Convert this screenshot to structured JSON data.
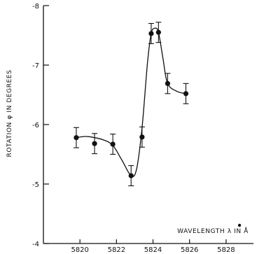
{
  "chart_data": {
    "type": "scatter",
    "xlabel": "WAVELENGTH λ IN Å",
    "ylabel": "ROTATION φ IN DEGREES",
    "xlim": [
      5818,
      5829.5
    ],
    "ylim": [
      -4,
      -8
    ],
    "y_inverted": true,
    "x_ticks": [
      5820,
      5822,
      5824,
      5826,
      5828
    ],
    "x_tick_labels": [
      "5820",
      "5822",
      "5824",
      "5826",
      "5828"
    ],
    "y_ticks": [
      -4,
      -5,
      -6,
      -7,
      -8
    ],
    "y_tick_labels": [
      "-4",
      "-5",
      "-6",
      "-7",
      "-8"
    ],
    "grid": false,
    "legend": "none",
    "series": [
      {
        "x": [
          5819.8,
          5820.8,
          5821.8,
          5822.8,
          5823.4,
          5823.9,
          5824.3,
          5824.8,
          5825.8
        ],
        "y": [
          -5.78,
          -5.68,
          -5.67,
          -5.14,
          -5.79,
          -7.53,
          -7.55,
          -6.69,
          -6.52
        ],
        "error": [
          0.17,
          0.17,
          0.17,
          0.17,
          0.17,
          0.17,
          0.17,
          0.17,
          0.17
        ]
      }
    ],
    "fit_curve": {
      "x": [
        5819.8,
        5820.3,
        5820.8,
        5821.3,
        5821.8,
        5822.3,
        5822.8,
        5823.1,
        5823.4,
        5823.7,
        5823.9,
        5824.1,
        5824.3,
        5824.55,
        5824.8,
        5825.3,
        5825.8
      ],
      "y": [
        -5.78,
        -5.8,
        -5.78,
        -5.74,
        -5.65,
        -5.4,
        -5.14,
        -5.25,
        -5.95,
        -7.05,
        -7.53,
        -7.62,
        -7.55,
        -7.1,
        -6.69,
        -6.56,
        -6.52
      ]
    },
    "colors": {
      "ink": "#111111",
      "background": "#ffffff"
    }
  }
}
